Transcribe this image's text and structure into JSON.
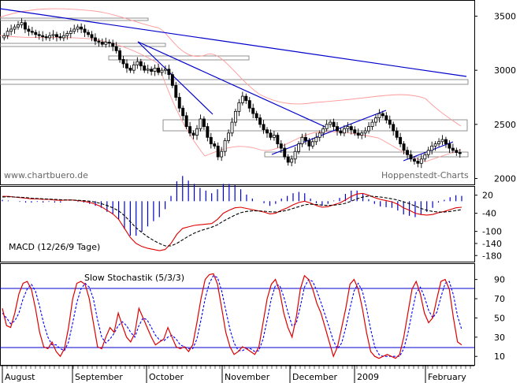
{
  "chart_data": [
    {
      "type": "candlestick",
      "panel": "price",
      "yticks": [
        3500,
        3000,
        2500,
        2000
      ],
      "ylim": [
        1960,
        3620
      ],
      "watermark_left": "www.chartbuero.de",
      "watermark_right": "Hoppenstedt-Charts",
      "colors": {
        "up": "#ffffff",
        "down": "#000000",
        "trendline": "#0000cc",
        "bollinger": "#ff9999"
      },
      "closes": [
        3320,
        3360,
        3380,
        3400,
        3420,
        3440,
        3380,
        3360,
        3350,
        3330,
        3320,
        3310,
        3300,
        3320,
        3330,
        3310,
        3300,
        3320,
        3340,
        3360,
        3380,
        3400,
        3380,
        3350,
        3330,
        3300,
        3270,
        3260,
        3240,
        3260,
        3250,
        3220,
        3180,
        3100,
        3060,
        3020,
        3000,
        3050,
        3080,
        3040,
        3000,
        3010,
        2990,
        3020,
        2980,
        3000,
        3010,
        2960,
        2860,
        2750,
        2650,
        2580,
        2480,
        2420,
        2400,
        2460,
        2550,
        2480,
        2380,
        2320,
        2300,
        2200,
        2250,
        2350,
        2420,
        2520,
        2620,
        2700,
        2760,
        2720,
        2650,
        2600,
        2560,
        2500,
        2450,
        2420,
        2380,
        2400,
        2320,
        2280,
        2200,
        2150,
        2180,
        2250,
        2320,
        2380,
        2350,
        2300,
        2340,
        2380,
        2420,
        2460,
        2500,
        2520,
        2480,
        2440,
        2420,
        2460,
        2480,
        2450,
        2420,
        2400,
        2420,
        2440,
        2480,
        2520,
        2560,
        2600,
        2580,
        2540,
        2500,
        2440,
        2380,
        2320,
        2260,
        2220,
        2180,
        2160,
        2140,
        2180,
        2220,
        2260,
        2300,
        2320,
        2340,
        2360,
        2320,
        2280,
        2260,
        2240,
        2230
      ]
    },
    {
      "type": "line",
      "panel": "macd",
      "title": "MACD (12/26/9 Tage)",
      "yticks": [
        "20",
        "-40",
        "-100",
        "-140",
        "-180"
      ],
      "tick_values": [
        20,
        -40,
        -100,
        -140,
        -180
      ],
      "ylim": [
        -195,
        40
      ],
      "series": [
        {
          "role": "macd",
          "color": "#dd0000",
          "values": [
            16,
            16,
            14,
            12,
            10,
            8,
            8,
            6,
            6,
            4,
            3,
            4,
            4,
            2,
            0,
            -4,
            -10,
            -18,
            -30,
            -42,
            -60,
            -90,
            -120,
            -140,
            -150,
            -156,
            -160,
            -164,
            -160,
            -140,
            -110,
            -90,
            -85,
            -80,
            -78,
            -76,
            -74,
            -60,
            -40,
            -30,
            -22,
            -20,
            -24,
            -28,
            -32,
            -36,
            -42,
            -40,
            -30,
            -22,
            -12,
            -4,
            0,
            -6,
            -14,
            -20,
            -18,
            -12,
            -6,
            4,
            16,
            24,
            26,
            20,
            12,
            6,
            2,
            -2,
            -10,
            -22,
            -30,
            -40,
            -44,
            -46,
            -44,
            -38,
            -34,
            -28,
            -22,
            -20
          ]
        },
        {
          "role": "signal",
          "color": "#000000",
          "values": [
            14,
            15,
            14,
            13,
            12,
            10,
            9,
            8,
            7,
            6,
            5,
            4,
            4,
            3,
            2,
            0,
            -3,
            -8,
            -14,
            -22,
            -32,
            -48,
            -68,
            -88,
            -104,
            -118,
            -130,
            -140,
            -148,
            -148,
            -140,
            -128,
            -116,
            -106,
            -98,
            -92,
            -86,
            -78,
            -66,
            -56,
            -46,
            -38,
            -34,
            -32,
            -32,
            -33,
            -35,
            -36,
            -34,
            -30,
            -24,
            -18,
            -12,
            -10,
            -11,
            -13,
            -14,
            -13,
            -11,
            -7,
            0,
            8,
            14,
            17,
            16,
            14,
            11,
            8,
            4,
            -2,
            -8,
            -16,
            -24,
            -30,
            -34,
            -36,
            -36,
            -34,
            -31,
            -28
          ]
        }
      ]
    },
    {
      "type": "line",
      "panel": "stochastic",
      "title": "Slow Stochastik (5/3/3)",
      "yticks": [
        90,
        70,
        50,
        30,
        10
      ],
      "ylim": [
        2,
        102
      ],
      "hlines": [
        80,
        20
      ],
      "series": [
        {
          "role": "%K",
          "color": "#dd0000",
          "values": [
            60,
            42,
            40,
            55,
            75,
            86,
            88,
            80,
            60,
            35,
            20,
            18,
            25,
            15,
            10,
            18,
            40,
            70,
            86,
            88,
            85,
            70,
            45,
            20,
            18,
            30,
            40,
            35,
            55,
            42,
            30,
            25,
            34,
            60,
            50,
            40,
            30,
            22,
            25,
            28,
            40,
            30,
            20,
            18,
            20,
            15,
            22,
            45,
            70,
            90,
            95,
            96,
            85,
            60,
            35,
            20,
            12,
            15,
            20,
            18,
            15,
            12,
            20,
            45,
            70,
            85,
            90,
            78,
            55,
            40,
            30,
            50,
            80,
            94,
            90,
            80,
            65,
            55,
            40,
            25,
            10,
            20,
            40,
            60,
            85,
            90,
            80,
            60,
            35,
            15,
            10,
            8,
            10,
            12,
            10,
            8,
            12,
            30,
            55,
            80,
            88,
            75,
            55,
            45,
            50,
            70,
            88,
            90,
            80,
            50,
            25,
            22
          ]
        },
        {
          "role": "%D",
          "color": "#0000ff",
          "values": [
            55,
            50,
            44,
            47,
            55,
            70,
            80,
            85,
            78,
            62,
            44,
            30,
            22,
            22,
            18,
            16,
            25,
            45,
            66,
            80,
            86,
            82,
            70,
            48,
            30,
            24,
            28,
            34,
            42,
            46,
            42,
            35,
            30,
            42,
            50,
            48,
            40,
            32,
            27,
            26,
            30,
            32,
            28,
            22,
            20,
            18,
            18,
            28,
            48,
            70,
            86,
            94,
            92,
            78,
            58,
            38,
            24,
            16,
            16,
            18,
            18,
            15,
            16,
            28,
            48,
            70,
            84,
            84,
            72,
            56,
            42,
            44,
            62,
            82,
            90,
            88,
            78,
            66,
            53,
            40,
            26,
            18,
            24,
            40,
            60,
            78,
            86,
            78,
            60,
            38,
            20,
            12,
            10,
            10,
            10,
            10,
            10,
            18,
            34,
            56,
            76,
            82,
            72,
            58,
            50,
            56,
            72,
            86,
            88,
            74,
            52,
            38
          ]
        }
      ]
    }
  ],
  "xaxis": {
    "months": [
      "August",
      "September",
      "October",
      "November",
      "December",
      "2009",
      "February"
    ]
  }
}
